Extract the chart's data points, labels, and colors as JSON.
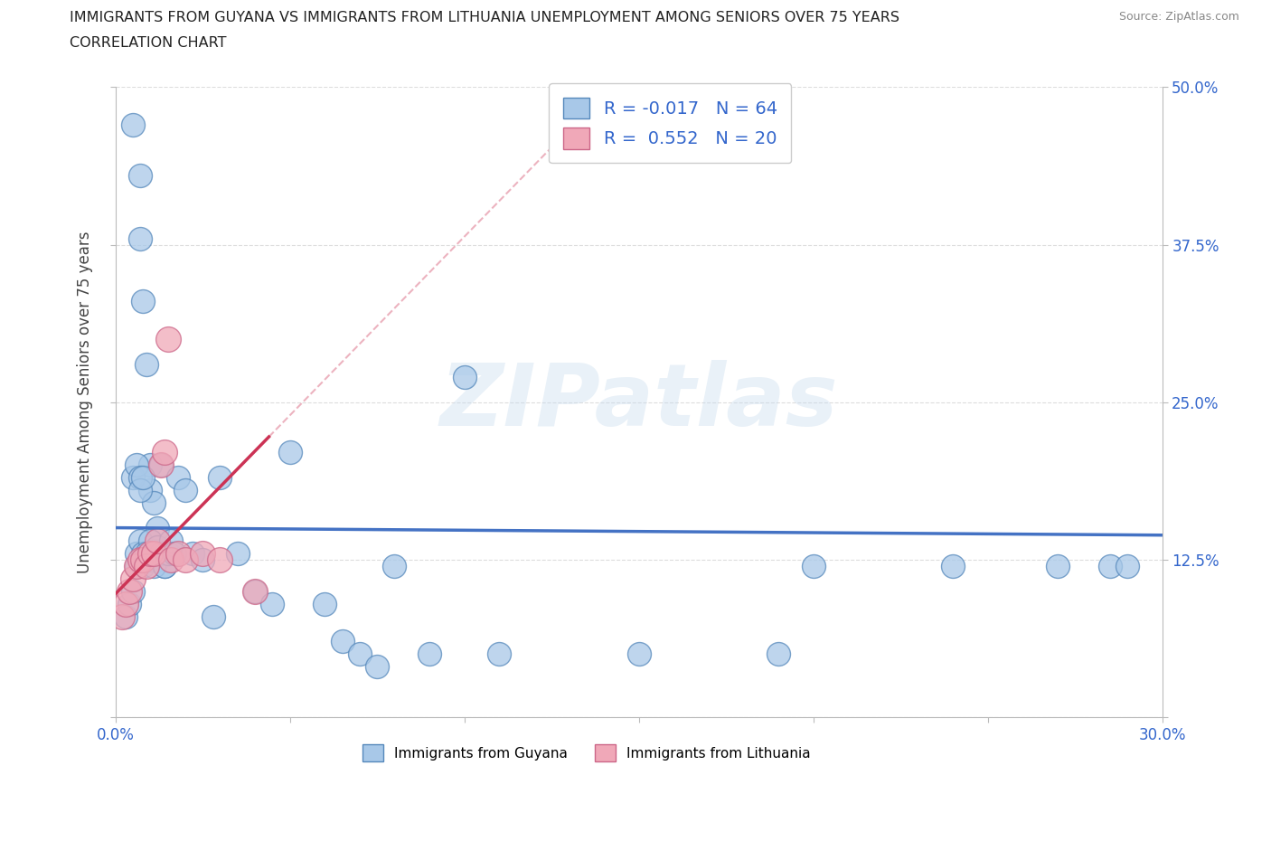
{
  "title_line1": "IMMIGRANTS FROM GUYANA VS IMMIGRANTS FROM LITHUANIA UNEMPLOYMENT AMONG SENIORS OVER 75 YEARS",
  "title_line2": "CORRELATION CHART",
  "source_text": "Source: ZipAtlas.com",
  "ylabel": "Unemployment Among Seniors over 75 years",
  "xlim": [
    0.0,
    0.3
  ],
  "ylim": [
    0.0,
    0.5
  ],
  "xticks": [
    0.0,
    0.05,
    0.1,
    0.15,
    0.2,
    0.25,
    0.3
  ],
  "yticks": [
    0.0,
    0.125,
    0.25,
    0.375,
    0.5
  ],
  "yticklabels_right": [
    "",
    "12.5%",
    "25.0%",
    "37.5%",
    "50.0%"
  ],
  "guyana_color": "#A8C8E8",
  "lithuania_color": "#F0A8B8",
  "guyana_edge": "#5588BB",
  "lithuania_edge": "#CC6688",
  "guyana_R": -0.017,
  "guyana_N": 64,
  "lithuania_R": 0.552,
  "lithuania_N": 20,
  "legend_label_guyana": "Immigrants from Guyana",
  "legend_label_lithuania": "Immigrants from Lithuania",
  "watermark": "ZIPatlas",
  "blue_line_color": "#4472C4",
  "pink_line_color": "#CC3355",
  "dash_line_color": "#E8A0B0",
  "guyana_x": [
    0.005,
    0.007,
    0.007,
    0.008,
    0.009,
    0.01,
    0.01,
    0.011,
    0.012,
    0.013,
    0.003,
    0.004,
    0.005,
    0.006,
    0.006,
    0.007,
    0.008,
    0.008,
    0.009,
    0.01,
    0.01,
    0.011,
    0.012,
    0.013,
    0.014,
    0.005,
    0.006,
    0.007,
    0.007,
    0.008,
    0.009,
    0.01,
    0.011,
    0.012,
    0.013,
    0.014,
    0.015,
    0.016,
    0.017,
    0.018,
    0.02,
    0.022,
    0.025,
    0.028,
    0.03,
    0.035,
    0.04,
    0.045,
    0.05,
    0.06,
    0.065,
    0.07,
    0.075,
    0.08,
    0.09,
    0.1,
    0.11,
    0.15,
    0.19,
    0.2,
    0.24,
    0.27,
    0.285,
    0.29
  ],
  "guyana_y": [
    0.47,
    0.43,
    0.38,
    0.33,
    0.28,
    0.2,
    0.18,
    0.17,
    0.15,
    0.2,
    0.08,
    0.09,
    0.1,
    0.12,
    0.13,
    0.14,
    0.13,
    0.12,
    0.125,
    0.13,
    0.14,
    0.13,
    0.125,
    0.13,
    0.12,
    0.19,
    0.2,
    0.19,
    0.18,
    0.19,
    0.13,
    0.125,
    0.12,
    0.135,
    0.13,
    0.12,
    0.13,
    0.14,
    0.13,
    0.19,
    0.18,
    0.13,
    0.125,
    0.08,
    0.19,
    0.13,
    0.1,
    0.09,
    0.21,
    0.09,
    0.06,
    0.05,
    0.04,
    0.12,
    0.05,
    0.27,
    0.05,
    0.05,
    0.05,
    0.12,
    0.12,
    0.12,
    0.12,
    0.12
  ],
  "lithuania_x": [
    0.002,
    0.003,
    0.004,
    0.005,
    0.006,
    0.007,
    0.008,
    0.009,
    0.01,
    0.011,
    0.012,
    0.013,
    0.014,
    0.015,
    0.016,
    0.018,
    0.02,
    0.025,
    0.03,
    0.04
  ],
  "lithuania_y": [
    0.08,
    0.09,
    0.1,
    0.11,
    0.12,
    0.125,
    0.125,
    0.12,
    0.13,
    0.13,
    0.14,
    0.2,
    0.21,
    0.3,
    0.125,
    0.13,
    0.125,
    0.13,
    0.125,
    0.1
  ]
}
